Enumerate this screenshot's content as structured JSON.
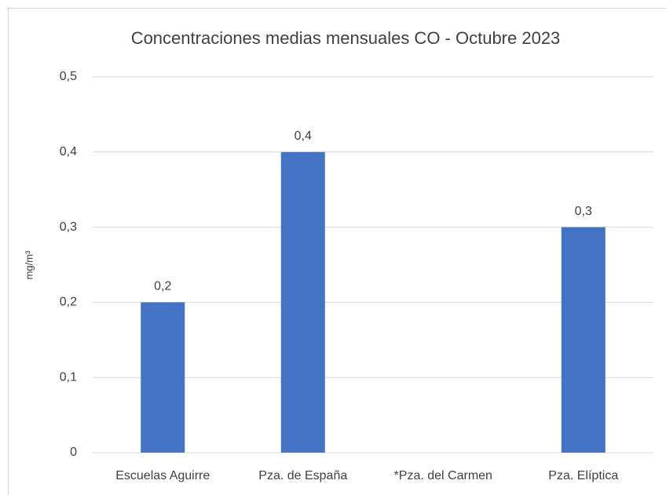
{
  "chart_data": {
    "type": "bar",
    "title": "Concentraciones medias mensuales CO - Octubre 2023",
    "y_label": "mg/m³",
    "categories": [
      "Escuelas Aguirre",
      "Pza. de España",
      "*Pza. del Carmen",
      "Pza. Elíptica"
    ],
    "values": [
      0.2,
      0.4,
      null,
      0.3
    ],
    "value_labels": [
      "0,2",
      "0,4",
      null,
      "0,3"
    ],
    "color": "#4472c4",
    "ylim": [
      0,
      0.5
    ],
    "yticks": [
      0,
      {
        "value": 0.1,
        "label": "0,1"
      },
      {
        "value": 0.2,
        "label": "0,2"
      },
      {
        "value": 0.3,
        "label": "0,3"
      },
      {
        "value": 0.4,
        "label": "0,4"
      },
      {
        "value": 0.5,
        "label": "0,5"
      }
    ],
    "grid": true
  }
}
